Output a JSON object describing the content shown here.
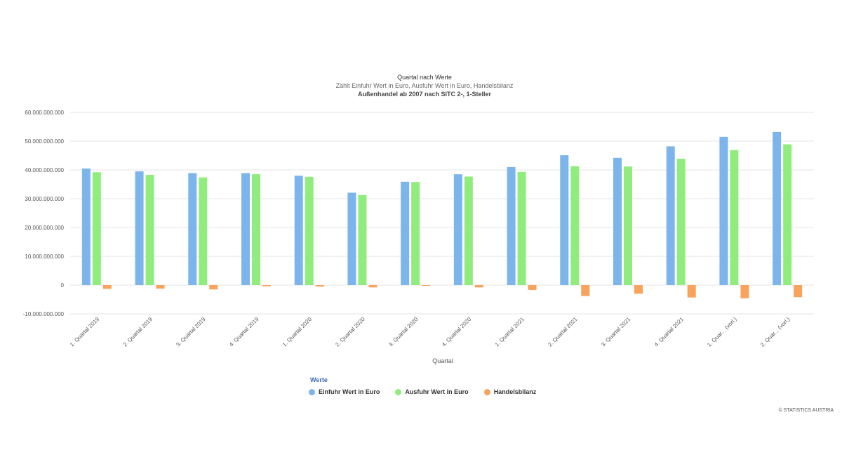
{
  "titles": {
    "title": "Quartal nach Werte",
    "subtitle": "Zählt Einfuhr Wert in Euro, Ausfuhr Wert in Euro, Handelsbilanz",
    "subtitle2": "Außenhandel ab 2007 nach SITC 2-, 1-Steller"
  },
  "legend": {
    "title": "Werte",
    "items": [
      {
        "label": "Einfuhr Wert in Euro",
        "color": "#7cb5ec"
      },
      {
        "label": "Ausfuhr Wert in Euro",
        "color": "#90ed7d"
      },
      {
        "label": "Handelsbilanz",
        "color": "#f7a35c"
      }
    ]
  },
  "credits": "© STATISTICS AUSTRIA",
  "chart_data": {
    "type": "bar",
    "xlabel": "Quartal",
    "ylabel": "",
    "ylim": [
      -10000000000,
      60000000000
    ],
    "yticks": [
      -10000000000,
      0,
      10000000000,
      20000000000,
      30000000000,
      40000000000,
      50000000000,
      60000000000
    ],
    "ytick_labels": [
      "-10.000.000.000",
      "0",
      "10.000.000.000",
      "20.000.000.000",
      "30.000.000.000",
      "40.000.000.000",
      "50.000.000.000",
      "60.000.000.000"
    ],
    "grid": true,
    "legend_position": "bottom",
    "categories": [
      "1. Quartal 2019",
      "2. Quartal 2019",
      "3. Quartal 2019",
      "4. Quartal 2019",
      "1. Quartal 2020",
      "2. Quartal 2020",
      "3. Quartal 2020",
      "4. Quartal 2020",
      "1. Quartal 2021",
      "2. Quartal 2021",
      "3. Quartal 2021",
      "4. Quartal 2021",
      "1. Quar... (vorl.)",
      "2. Quar... (vorl.)"
    ],
    "series": [
      {
        "name": "Einfuhr Wert in Euro",
        "color": "#7cb5ec",
        "values": [
          40500000000,
          39500000000,
          38900000000,
          38900000000,
          38000000000,
          32100000000,
          35900000000,
          38500000000,
          41000000000,
          45100000000,
          44200000000,
          48200000000,
          51500000000,
          53200000000
        ]
      },
      {
        "name": "Ausfuhr Wert in Euro",
        "color": "#90ed7d",
        "values": [
          39200000000,
          38300000000,
          37400000000,
          38500000000,
          37600000000,
          31300000000,
          35800000000,
          37700000000,
          39300000000,
          41300000000,
          41200000000,
          43900000000,
          46900000000,
          48900000000
        ]
      },
      {
        "name": "Handelsbilanz",
        "color": "#f7a35c",
        "values": [
          -1300000000,
          -1200000000,
          -1500000000,
          -400000000,
          -500000000,
          -800000000,
          -100000000,
          -800000000,
          -1700000000,
          -3800000000,
          -3000000000,
          -4300000000,
          -4600000000,
          -4200000000
        ]
      }
    ]
  }
}
